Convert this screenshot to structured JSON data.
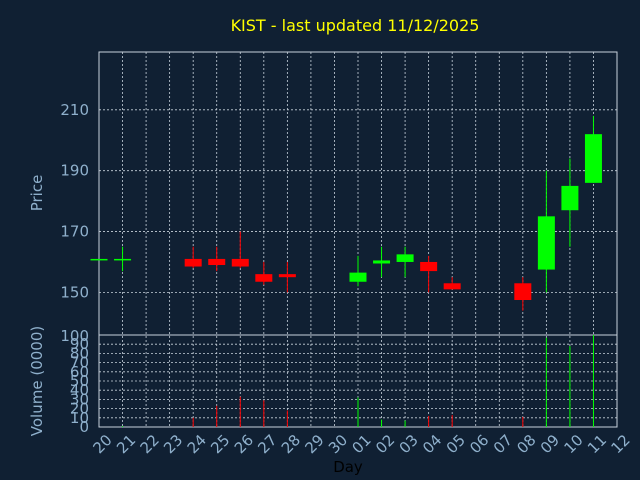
{
  "chart_data": {
    "type": "candlestick",
    "title": "KIST - last updated 11/12/2025",
    "xlabel": "Day",
    "ylabel_price": "Price",
    "ylabel_volume": "Volume (0000)",
    "x_ticks": [
      "20",
      "21",
      "22",
      "23",
      "24",
      "25",
      "26",
      "27",
      "28",
      "29",
      "30",
      "01",
      "02",
      "03",
      "04",
      "05",
      "06",
      "07",
      "08",
      "09",
      "10",
      "11",
      "12"
    ],
    "price_ticks": [
      "150",
      "170",
      "190",
      "210"
    ],
    "price_bottom_label": "100",
    "price_ylim": [
      136,
      229
    ],
    "volume_ticks": [
      "0",
      "10",
      "20",
      "30",
      "40",
      "50",
      "60",
      "70",
      "80",
      "90",
      "100"
    ],
    "volume_ylim": [
      0,
      100
    ],
    "grid": true,
    "colors": {
      "up": "#00ff00",
      "down": "#ff0000",
      "background": "#102033",
      "title": "#ffff00",
      "axis_text": "#8fb0cc",
      "grid": "#c8d2dc"
    },
    "candles": [
      {
        "day": "20",
        "open": 161,
        "high": 161,
        "low": 161,
        "close": 161,
        "volume": 0
      },
      {
        "day": "21",
        "open": 161,
        "high": 165,
        "low": 157,
        "close": 161,
        "volume": 1
      },
      {
        "day": "24",
        "open": 161,
        "high": 165,
        "low": 158,
        "close": 158.5,
        "volume": 10
      },
      {
        "day": "25",
        "open": 161,
        "high": 165,
        "low": 157,
        "close": 159,
        "volume": 23
      },
      {
        "day": "26",
        "open": 161,
        "high": 170,
        "low": 158,
        "close": 158.5,
        "volume": 33
      },
      {
        "day": "27",
        "open": 156,
        "high": 160,
        "low": 152.5,
        "close": 153.5,
        "volume": 29
      },
      {
        "day": "28",
        "open": 156,
        "high": 160,
        "low": 150,
        "close": 155,
        "volume": 18
      },
      {
        "day": "01",
        "open": 153.5,
        "high": 162,
        "low": 152,
        "close": 156.5,
        "volume": 32
      },
      {
        "day": "02",
        "open": 159.5,
        "high": 165,
        "low": 155,
        "close": 160.5,
        "volume": 8
      },
      {
        "day": "03",
        "open": 160,
        "high": 165,
        "low": 155,
        "close": 162.5,
        "volume": 7
      },
      {
        "day": "04",
        "open": 160,
        "high": 162,
        "low": 150,
        "close": 157,
        "volume": 12
      },
      {
        "day": "05",
        "open": 153,
        "high": 155,
        "low": 151,
        "close": 151,
        "volume": 13
      },
      {
        "day": "08",
        "open": 153,
        "high": 155,
        "low": 144,
        "close": 147.5,
        "volume": 11
      },
      {
        "day": "09",
        "open": 157.5,
        "high": 190,
        "low": 150,
        "close": 175,
        "volume": 97
      },
      {
        "day": "10",
        "open": 177,
        "high": 194,
        "low": 165,
        "close": 185,
        "volume": 88
      },
      {
        "day": "11",
        "open": 186,
        "high": 208,
        "low": 186,
        "close": 202,
        "volume": 100
      }
    ]
  }
}
